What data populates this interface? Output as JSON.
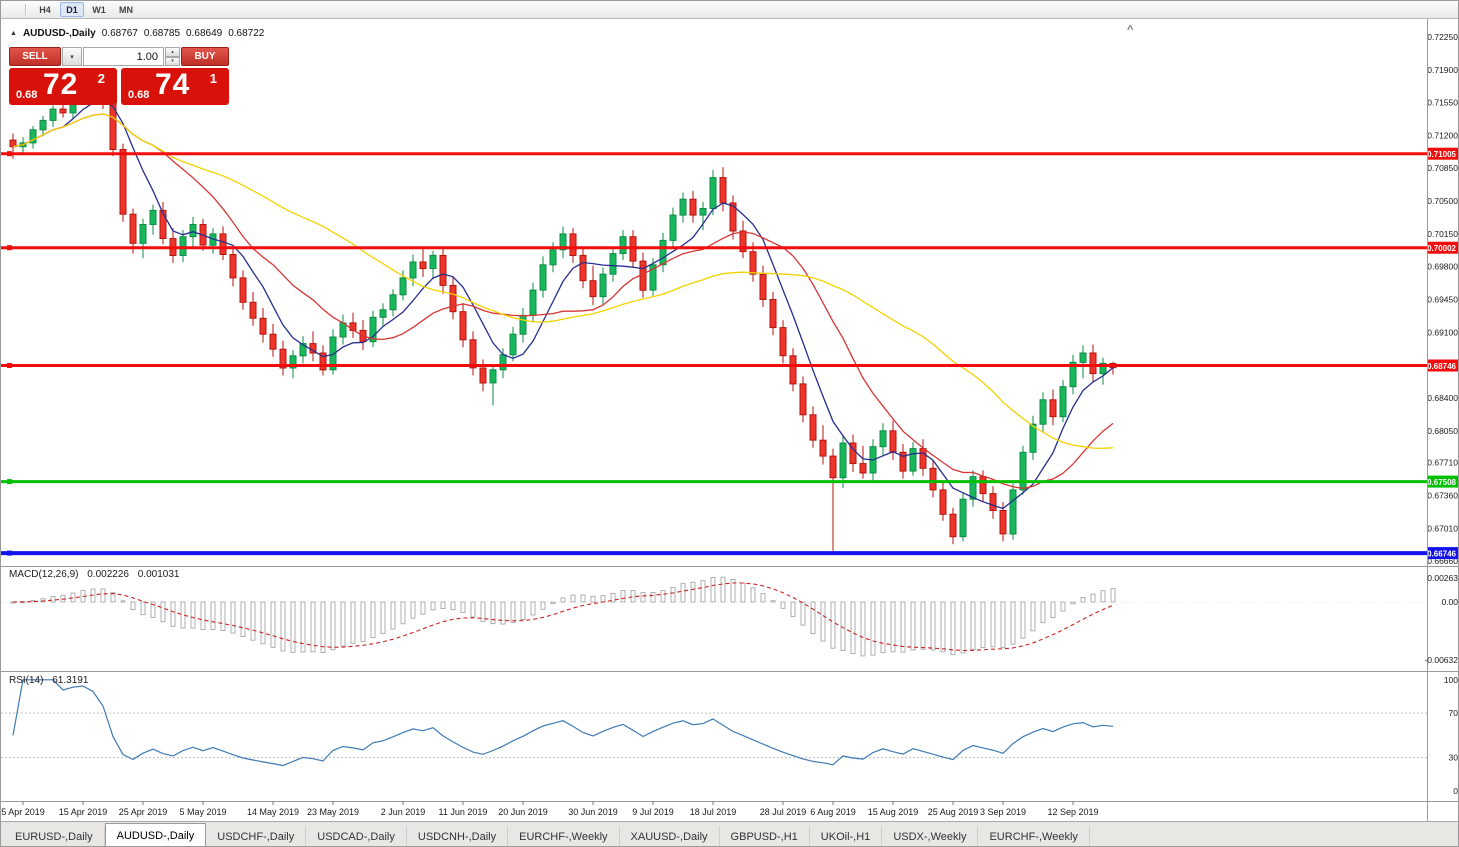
{
  "timeframe_toolbar": {
    "buttons": [
      "H4",
      "D1",
      "W1",
      "MN"
    ],
    "active": "D1"
  },
  "chart_header": {
    "collapse_icon": "▲",
    "symbol_title": "AUDUSD-,Daily",
    "open": "0.68767",
    "high": "0.68785",
    "low": "0.68649",
    "close": "0.68722"
  },
  "trade_panel": {
    "sell_label": "SELL",
    "buy_label": "BUY",
    "lot_value": "1.00",
    "dropdown_icon": "▾",
    "stepper_up_icon": "▴",
    "stepper_down_icon": "▾",
    "sell_price_prefix": "0.68",
    "sell_price_main": "72",
    "sell_price_sup": "2",
    "buy_price_prefix": "0.68",
    "buy_price_main": "74",
    "buy_price_sup": "1"
  },
  "macd_panel": {
    "name": "MACD(12,26,9)",
    "main_value": "0.002226",
    "signal_value": "0.001031"
  },
  "rsi_panel": {
    "name": "RSI(14)",
    "value": "61.3191"
  },
  "top_right_collapse": "^",
  "bottom_tabs": {
    "tabs": [
      "EURUSD-,Daily",
      "AUDUSD-,Daily",
      "USDCHF-,Daily",
      "USDCAD-,Daily",
      "USDCNH-,Daily",
      "EURCHF-,Weekly",
      "XAUUSD-,Daily",
      "GBPUSD-,H1",
      "UKOil-,H1",
      "USDX-,Weekly",
      "EURCHF-,Weekly"
    ],
    "active_index": 1
  },
  "chart_data": {
    "type": "candlestick",
    "symbol": "AUDUSD",
    "period": "Daily",
    "price_range": {
      "max": 0.7242,
      "min": 0.6664
    },
    "price_axis_ticks": [
      "0.72250",
      "0.71900",
      "0.71550",
      "0.71200",
      "0.70850",
      "0.70500",
      "0.70150",
      "0.69800",
      "0.69450",
      "0.69100",
      "0.68750",
      "0.68400",
      "0.68050",
      "0.67710",
      "0.67360",
      "0.67010",
      "0.66660"
    ],
    "date_labels": [
      {
        "text": "5 Apr 2019",
        "index": 1
      },
      {
        "text": "15 Apr 2019",
        "index": 7
      },
      {
        "text": "25 Apr 2019",
        "index": 13
      },
      {
        "text": "5 May 2019",
        "index": 19
      },
      {
        "text": "14 May 2019",
        "index": 26
      },
      {
        "text": "23 May 2019",
        "index": 32
      },
      {
        "text": "2 Jun 2019",
        "index": 39
      },
      {
        "text": "11 Jun 2019",
        "index": 45
      },
      {
        "text": "20 Jun 2019",
        "index": 51
      },
      {
        "text": "30 Jun 2019",
        "index": 58
      },
      {
        "text": "9 Jul 2019",
        "index": 64
      },
      {
        "text": "18 Jul 2019",
        "index": 70
      },
      {
        "text": "28 Jul 2019",
        "index": 77
      },
      {
        "text": "6 Aug 2019",
        "index": 82
      },
      {
        "text": "15 Aug 2019",
        "index": 88
      },
      {
        "text": "25 Aug 2019",
        "index": 94
      },
      {
        "text": "3 Sep 2019",
        "index": 99
      },
      {
        "text": "12 Sep 2019",
        "index": 106
      }
    ],
    "candle_colors": {
      "up_fill": "#19b75c",
      "up_stroke": "#0c8c44",
      "down_fill": "#ee352c",
      "down_stroke": "#b3150d"
    },
    "moving_averages": [
      {
        "period": 6,
        "color": "#252e8f"
      },
      {
        "period": 14,
        "color": "#d93535"
      },
      {
        "period": 32,
        "color": "#f2d200"
      }
    ],
    "hlines": [
      {
        "price": 0.71005,
        "label": "0.71005",
        "color": "#f20c0c",
        "width": 3
      },
      {
        "price": 0.70002,
        "label": "0.70002",
        "color": "#f20c0c",
        "width": 3
      },
      {
        "price": 0.68746,
        "label": "0.68746",
        "color": "#f20c0c",
        "width": 3
      },
      {
        "price": 0.67508,
        "label": "0.67508",
        "color": "#00c000",
        "width": 3
      },
      {
        "price": 0.66746,
        "label": "0.66746",
        "color": "#1212ee",
        "width": 4
      }
    ],
    "macd": {
      "fast": 12,
      "slow": 26,
      "signal": 9,
      "range_max": 0.0038,
      "range_min": -0.0075,
      "axis": [
        {
          "text": "0.00263",
          "value": 0.00263
        },
        {
          "text": "0.00",
          "value": 0
        },
        {
          "text": "-0.00632",
          "value": -0.00632
        }
      ],
      "histogram_color": "#9c9c9c",
      "signal_color": "#cc2222"
    },
    "rsi": {
      "period": 14,
      "range_max": 107,
      "range_min": -9,
      "levels": [
        70,
        30
      ],
      "axis": [
        {
          "text": "100",
          "value": 100
        },
        {
          "text": "70",
          "value": 70
        },
        {
          "text": "30",
          "value": 30
        },
        {
          "text": "0",
          "value": 0
        }
      ],
      "line_color": "#3f7ab5",
      "level_color": "#c0c0c0"
    },
    "ohlc": [
      [
        0.7115,
        0.7122,
        0.7095,
        0.7108
      ],
      [
        0.7108,
        0.7118,
        0.71,
        0.7112
      ],
      [
        0.7112,
        0.713,
        0.7106,
        0.7126
      ],
      [
        0.7126,
        0.7141,
        0.7119,
        0.7136
      ],
      [
        0.7136,
        0.7152,
        0.7129,
        0.7148
      ],
      [
        0.7148,
        0.7161,
        0.7139,
        0.7144
      ],
      [
        0.7144,
        0.7166,
        0.7138,
        0.716
      ],
      [
        0.716,
        0.7176,
        0.7154,
        0.7172
      ],
      [
        0.7172,
        0.7181,
        0.7159,
        0.7168
      ],
      [
        0.7168,
        0.7175,
        0.7148,
        0.7155
      ],
      [
        0.7155,
        0.7159,
        0.7098,
        0.7105
      ],
      [
        0.7105,
        0.7111,
        0.7028,
        0.7036
      ],
      [
        0.7036,
        0.7042,
        0.6994,
        0.7005
      ],
      [
        0.7005,
        0.7031,
        0.6989,
        0.7025
      ],
      [
        0.7025,
        0.7046,
        0.7014,
        0.704
      ],
      [
        0.704,
        0.7049,
        0.7004,
        0.701
      ],
      [
        0.701,
        0.7021,
        0.6984,
        0.6992
      ],
      [
        0.6992,
        0.7019,
        0.6985,
        0.7012
      ],
      [
        0.7012,
        0.7033,
        0.6999,
        0.7025
      ],
      [
        0.7025,
        0.7031,
        0.6997,
        0.7003
      ],
      [
        0.7003,
        0.7021,
        0.6994,
        0.7015
      ],
      [
        0.7015,
        0.7023,
        0.6987,
        0.6993
      ],
      [
        0.6993,
        0.7001,
        0.6959,
        0.6968
      ],
      [
        0.6968,
        0.6976,
        0.6934,
        0.6942
      ],
      [
        0.6942,
        0.6953,
        0.6917,
        0.6925
      ],
      [
        0.6925,
        0.6936,
        0.6899,
        0.6908
      ],
      [
        0.6908,
        0.6919,
        0.6884,
        0.6892
      ],
      [
        0.6892,
        0.6901,
        0.6864,
        0.6872
      ],
      [
        0.6872,
        0.6891,
        0.6861,
        0.6885
      ],
      [
        0.6885,
        0.6906,
        0.6877,
        0.6898
      ],
      [
        0.6898,
        0.6911,
        0.6879,
        0.6888
      ],
      [
        0.6888,
        0.6896,
        0.6864,
        0.687
      ],
      [
        0.687,
        0.6913,
        0.6865,
        0.6905
      ],
      [
        0.6905,
        0.6929,
        0.6897,
        0.692
      ],
      [
        0.692,
        0.6931,
        0.6904,
        0.6912
      ],
      [
        0.6912,
        0.6923,
        0.6891,
        0.69
      ],
      [
        0.69,
        0.6933,
        0.6894,
        0.6926
      ],
      [
        0.6926,
        0.6941,
        0.6917,
        0.6934
      ],
      [
        0.6934,
        0.6956,
        0.6927,
        0.695
      ],
      [
        0.695,
        0.6976,
        0.6944,
        0.6968
      ],
      [
        0.6968,
        0.6993,
        0.6959,
        0.6985
      ],
      [
        0.6985,
        0.6999,
        0.6969,
        0.6978
      ],
      [
        0.6978,
        0.6997,
        0.6967,
        0.6992
      ],
      [
        0.6992,
        0.6999,
        0.6951,
        0.696
      ],
      [
        0.696,
        0.6969,
        0.6924,
        0.6932
      ],
      [
        0.6932,
        0.6941,
        0.6894,
        0.6902
      ],
      [
        0.6902,
        0.6911,
        0.6864,
        0.6872
      ],
      [
        0.6872,
        0.6881,
        0.6847,
        0.6856
      ],
      [
        0.6856,
        0.6876,
        0.6832,
        0.687
      ],
      [
        0.687,
        0.6893,
        0.6861,
        0.6886
      ],
      [
        0.6886,
        0.6916,
        0.6879,
        0.6908
      ],
      [
        0.6908,
        0.6936,
        0.6899,
        0.6928
      ],
      [
        0.6928,
        0.6963,
        0.6921,
        0.6955
      ],
      [
        0.6955,
        0.6991,
        0.6947,
        0.6982
      ],
      [
        0.6982,
        0.7006,
        0.6974,
        0.6998
      ],
      [
        0.6998,
        0.7023,
        0.6989,
        0.7015
      ],
      [
        0.7015,
        0.7021,
        0.6984,
        0.6992
      ],
      [
        0.6992,
        0.7001,
        0.6957,
        0.6965
      ],
      [
        0.6965,
        0.6981,
        0.6939,
        0.6948
      ],
      [
        0.6948,
        0.6979,
        0.6939,
        0.6972
      ],
      [
        0.6972,
        0.7001,
        0.6964,
        0.6994
      ],
      [
        0.6994,
        0.7019,
        0.6987,
        0.7012
      ],
      [
        0.7012,
        0.7019,
        0.6979,
        0.6986
      ],
      [
        0.6986,
        0.6995,
        0.6947,
        0.6955
      ],
      [
        0.6955,
        0.6989,
        0.6949,
        0.6982
      ],
      [
        0.6982,
        0.7016,
        0.6974,
        0.7008
      ],
      [
        0.7008,
        0.7043,
        0.6999,
        0.7035
      ],
      [
        0.7035,
        0.7059,
        0.7027,
        0.7052
      ],
      [
        0.7052,
        0.7061,
        0.7027,
        0.7035
      ],
      [
        0.7035,
        0.7049,
        0.7019,
        0.7042
      ],
      [
        0.7042,
        0.7083,
        0.7035,
        0.7075
      ],
      [
        0.7075,
        0.7086,
        0.7039,
        0.7048
      ],
      [
        0.7048,
        0.7056,
        0.7009,
        0.7018
      ],
      [
        0.7018,
        0.7029,
        0.6989,
        0.6996
      ],
      [
        0.6996,
        0.7006,
        0.6964,
        0.6972
      ],
      [
        0.6972,
        0.6981,
        0.6937,
        0.6945
      ],
      [
        0.6945,
        0.6953,
        0.6907,
        0.6915
      ],
      [
        0.6915,
        0.6923,
        0.6877,
        0.6885
      ],
      [
        0.6885,
        0.6893,
        0.6847,
        0.6855
      ],
      [
        0.6855,
        0.6863,
        0.6814,
        0.6822
      ],
      [
        0.6822,
        0.6831,
        0.6787,
        0.6795
      ],
      [
        0.6795,
        0.6811,
        0.6769,
        0.6778
      ],
      [
        0.6778,
        0.6786,
        0.6677,
        0.6755
      ],
      [
        0.6755,
        0.6801,
        0.6744,
        0.6792
      ],
      [
        0.6792,
        0.6801,
        0.6761,
        0.677
      ],
      [
        0.677,
        0.6789,
        0.6754,
        0.676
      ],
      [
        0.676,
        0.6796,
        0.6751,
        0.6788
      ],
      [
        0.6788,
        0.6813,
        0.6779,
        0.6805
      ],
      [
        0.6805,
        0.6816,
        0.6774,
        0.6782
      ],
      [
        0.6782,
        0.6791,
        0.6754,
        0.6762
      ],
      [
        0.6762,
        0.6793,
        0.6757,
        0.6786
      ],
      [
        0.6786,
        0.6796,
        0.6757,
        0.6765
      ],
      [
        0.6765,
        0.6773,
        0.6734,
        0.6742
      ],
      [
        0.6742,
        0.6751,
        0.6709,
        0.6716
      ],
      [
        0.6716,
        0.6723,
        0.6684,
        0.6692
      ],
      [
        0.6692,
        0.6739,
        0.6687,
        0.6732
      ],
      [
        0.6732,
        0.6763,
        0.6724,
        0.6756
      ],
      [
        0.6756,
        0.6763,
        0.6729,
        0.6738
      ],
      [
        0.6738,
        0.6746,
        0.6711,
        0.672
      ],
      [
        0.672,
        0.6729,
        0.6687,
        0.6695
      ],
      [
        0.6695,
        0.6749,
        0.6689,
        0.6742
      ],
      [
        0.6742,
        0.6789,
        0.6737,
        0.6782
      ],
      [
        0.6782,
        0.6821,
        0.6774,
        0.6812
      ],
      [
        0.6812,
        0.6846,
        0.6804,
        0.6838
      ],
      [
        0.6838,
        0.6849,
        0.6811,
        0.682
      ],
      [
        0.682,
        0.6859,
        0.6814,
        0.6852
      ],
      [
        0.6852,
        0.6886,
        0.6844,
        0.6878
      ],
      [
        0.6878,
        0.6896,
        0.6861,
        0.6888
      ],
      [
        0.6888,
        0.6897,
        0.6857,
        0.6866
      ],
      [
        0.6866,
        0.6883,
        0.6854,
        0.6877
      ],
      [
        0.68767,
        0.68785,
        0.68649,
        0.68722
      ]
    ]
  }
}
